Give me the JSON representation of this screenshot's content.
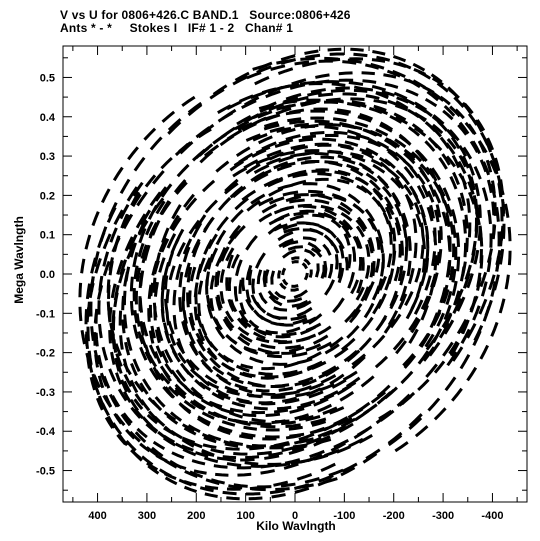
{
  "header": {
    "line1": "V vs U for 0806+426.C BAND.1   Source:0806+426",
    "line2": "Ants * - *     Stokes I   IF# 1 - 2   Chan# 1"
  },
  "chart_data": {
    "type": "scatter",
    "xlabel": "Kilo Wavlngth",
    "ylabel": "Mega Wavlngth",
    "xlim": [
      470,
      -470
    ],
    "ylim": [
      -0.58,
      0.58
    ],
    "x_ticks": [
      400,
      300,
      200,
      100,
      0,
      -100,
      -200,
      -300,
      -400
    ],
    "x_tick_labels": [
      "400",
      "300",
      "200",
      "100",
      "0",
      "-100",
      "-200",
      "-300",
      "-400"
    ],
    "y_ticks": [
      0.5,
      0.4,
      0.3,
      0.2,
      0.1,
      0.0,
      -0.1,
      -0.2,
      -0.3,
      -0.4,
      -0.5
    ],
    "y_tick_labels": [
      "0.5",
      "0.4",
      "0.3",
      "0.2",
      "0.1",
      "0.0",
      "-0.1",
      "-0.2",
      "-0.3",
      "-0.4",
      "-0.5"
    ],
    "grid": false,
    "marker_color": "#000000",
    "description": "Symmetric uv-coverage: dashed elliptical arcs of visibility points filling roughly |u| <= 450 kilo-wavelengths and |v| <= 0.56 mega-wavelengths, with point-symmetric arcs in opposite quadrants."
  }
}
